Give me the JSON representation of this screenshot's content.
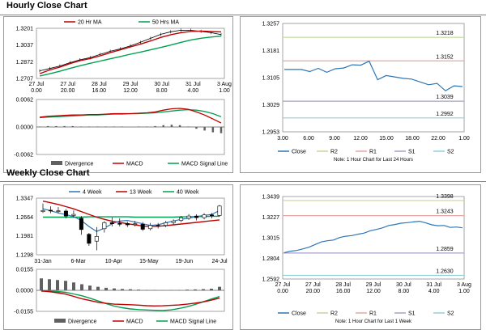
{
  "sections": {
    "hourly_title": "Hourly Close Chart",
    "weekly_title": "Weekly Close Chart"
  },
  "chart_data": [
    {
      "id": "hourly-price",
      "type": "line",
      "title": "Hourly Close Chart",
      "legend": [
        "20 Hr MA",
        "50 Hrs MA"
      ],
      "legend_colors": [
        "#c00000",
        "#00a050"
      ],
      "x_tick_labels": [
        [
          "27 Jul",
          "0.00"
        ],
        [
          "27 Jul",
          "20.00"
        ],
        [
          "28 Jul",
          "16.00"
        ],
        [
          "29 Jul",
          "12.00"
        ],
        [
          "30 Jul",
          "8.00"
        ],
        [
          "31 Jul",
          "4.00"
        ],
        [
          "3 Aug",
          "1.00"
        ]
      ],
      "y_ticks": [
        1.2707,
        1.2872,
        1.3037,
        1.3201
      ],
      "ylim": [
        1.2707,
        1.3201
      ],
      "series": [
        {
          "name": "Price",
          "color": "#000000",
          "values": [
            1.2782,
            1.2805,
            1.283,
            1.2862,
            1.2891,
            1.2912,
            1.2944,
            1.2975,
            1.2999,
            1.3028,
            1.3063,
            1.3102,
            1.3141,
            1.3167,
            1.3182,
            1.3181,
            1.3171,
            1.3158,
            1.3139
          ]
        },
        {
          "name": "20 Hr MA",
          "color": "#c00000",
          "values": [
            1.2754,
            1.2791,
            1.2819,
            1.2853,
            1.2883,
            1.2903,
            1.293,
            1.2961,
            1.2989,
            1.3018,
            1.3045,
            1.3077,
            1.3111,
            1.3138,
            1.3158,
            1.3171,
            1.3174,
            1.3169,
            1.3166
          ]
        },
        {
          "name": "50 Hrs MA",
          "color": "#00a050",
          "values": [
            1.2731,
            1.2753,
            1.2778,
            1.2806,
            1.2832,
            1.2856,
            1.2878,
            1.2901,
            1.2923,
            1.2946,
            1.2967,
            1.2989,
            1.3012,
            1.3036,
            1.3062,
            1.3086,
            1.3103,
            1.3115,
            1.3124
          ]
        }
      ]
    },
    {
      "id": "hourly-macd",
      "type": "line",
      "legend": [
        "Divergence",
        "MACD",
        "MACD Signal Line"
      ],
      "legend_colors": [
        "#606060",
        "#c00000",
        "#00a050"
      ],
      "y_ticks": [
        -0.0062,
        0.0,
        0.0062
      ],
      "ylim": [
        -0.0062,
        0.0062
      ],
      "series": [
        {
          "name": "MACD",
          "color": "#c00000",
          "values": [
            0.0022,
            0.0024,
            0.0025,
            0.0026,
            0.0027,
            0.0027,
            0.0028,
            0.0028,
            0.0029,
            0.003,
            0.003,
            0.003,
            0.0031,
            0.0032,
            0.0034,
            0.0038,
            0.0041,
            0.0042,
            0.004,
            0.0034,
            0.0027,
            0.0018,
            0.0009
          ]
        },
        {
          "name": "MACD Signal Line",
          "color": "#00a050",
          "values": [
            0.0021,
            0.0022,
            0.0023,
            0.0024,
            0.0025,
            0.0026,
            0.0027,
            0.0027,
            0.0028,
            0.0029,
            0.0029,
            0.003,
            0.003,
            0.0031,
            0.0032,
            0.0034,
            0.0036,
            0.0038,
            0.0039,
            0.0038,
            0.0035,
            0.003,
            0.0023
          ]
        },
        {
          "name": "Divergence",
          "color": "#606060",
          "values": [
            0.0001,
            0.0002,
            0.0002,
            0.0002,
            0.0002,
            0.0001,
            0.0001,
            0.0001,
            0.0001,
            0.0001,
            0.0001,
            0.0,
            0.0001,
            0.0001,
            0.0002,
            0.0004,
            0.0005,
            0.0004,
            0.0001,
            -0.0004,
            -0.0008,
            -0.0012,
            -0.0014
          ]
        }
      ]
    },
    {
      "id": "hourly-close",
      "type": "line",
      "legend": [
        "Close",
        "R2",
        "R1",
        "S1",
        "S2"
      ],
      "legend_colors": [
        "#2e75b6",
        "#c4d79b",
        "#e6a6a6",
        "#a9a0c8",
        "#92cddc"
      ],
      "note": "Note: 1 Hour Chart for Last 24 Hours",
      "x_tick_labels": [
        "3.00",
        "6.00",
        "9.00",
        "12.00",
        "15.00",
        "18.00",
        "22.00",
        "1.00"
      ],
      "y_ticks": [
        1.2953,
        1.3029,
        1.3105,
        1.3181,
        1.3257
      ],
      "ylim": [
        1.2953,
        1.3257
      ],
      "levels": {
        "R2": 1.3218,
        "R1": 1.3152,
        "S1": 1.3039,
        "S2": 1.2992
      },
      "level_labels": {
        "R2": "1.3218",
        "R1": "1.3152",
        "S1": "1.3039",
        "S2": "1.2992"
      },
      "series": [
        {
          "name": "Close",
          "color": "#2e75b6",
          "values": [
            1.3128,
            1.3128,
            1.3128,
            1.3122,
            1.3131,
            1.312,
            1.313,
            1.3132,
            1.3141,
            1.314,
            1.3151,
            1.3099,
            1.3111,
            1.3107,
            1.3103,
            1.3101,
            1.3093,
            1.3085,
            1.3089,
            1.3068,
            1.3082,
            1.308
          ]
        }
      ]
    },
    {
      "id": "weekly-price",
      "type": "line",
      "title": "Weekly Close Chart",
      "legend": [
        "4 Week",
        "13 Week",
        "40 Week"
      ],
      "legend_colors": [
        "#2e75b6",
        "#c00000",
        "#00a050"
      ],
      "x_tick_labels": [
        "31-Jan",
        "6-Mar",
        "10-Apr",
        "15-May",
        "19-Jun",
        "24-Jul"
      ],
      "y_ticks": [
        1.1298,
        1.1981,
        1.2664,
        1.3347
      ],
      "ylim": [
        1.1298,
        1.3347
      ],
      "series": [
        {
          "name": "4 Week",
          "color": "#2e75b6",
          "values": [
            1.296,
            1.289,
            1.281,
            1.275,
            1.268,
            1.254,
            1.232,
            1.214,
            1.226,
            1.242,
            1.252,
            1.254,
            1.248,
            1.242,
            1.236,
            1.238,
            1.246,
            1.252,
            1.258,
            1.262,
            1.268,
            1.272,
            1.276,
            1.29
          ]
        },
        {
          "name": "13 Week",
          "color": "#c00000",
          "values": [
            1.324,
            1.318,
            1.312,
            1.304,
            1.296,
            1.286,
            1.276,
            1.266,
            1.258,
            1.251,
            1.247,
            1.242,
            1.238,
            1.234,
            1.232,
            1.233,
            1.235,
            1.238,
            1.241,
            1.244,
            1.247,
            1.25,
            1.253,
            1.256
          ]
        },
        {
          "name": "40 Week",
          "color": "#00a050",
          "values": [
            1.266,
            1.266,
            1.266,
            1.266,
            1.266,
            1.266,
            1.267,
            1.267,
            1.267,
            1.267,
            1.267,
            1.267,
            1.266,
            1.266,
            1.266,
            1.266,
            1.266,
            1.266,
            1.267,
            1.267,
            1.268,
            1.268,
            1.269,
            1.269
          ]
        }
      ],
      "candles": [
        {
          "o": 1.286,
          "c": 1.29,
          "h": 1.315,
          "l": 1.281
        },
        {
          "o": 1.291,
          "c": 1.288,
          "h": 1.305,
          "l": 1.28
        },
        {
          "o": 1.287,
          "c": 1.289,
          "h": 1.302,
          "l": 1.28
        },
        {
          "o": 1.288,
          "c": 1.27,
          "h": 1.295,
          "l": 1.262
        },
        {
          "o": 1.272,
          "c": 1.276,
          "h": 1.29,
          "l": 1.264
        },
        {
          "o": 1.262,
          "c": 1.221,
          "h": 1.27,
          "l": 1.202
        },
        {
          "o": 1.204,
          "c": 1.171,
          "h": 1.209,
          "l": 1.162
        },
        {
          "o": 1.179,
          "c": 1.196,
          "h": 1.23,
          "l": 1.146
        },
        {
          "o": 1.224,
          "c": 1.246,
          "h": 1.252,
          "l": 1.21
        },
        {
          "o": 1.246,
          "c": 1.242,
          "h": 1.265,
          "l": 1.232
        },
        {
          "o": 1.243,
          "c": 1.241,
          "h": 1.262,
          "l": 1.232
        },
        {
          "o": 1.243,
          "c": 1.238,
          "h": 1.25,
          "l": 1.23
        },
        {
          "o": 1.24,
          "c": 1.242,
          "h": 1.252,
          "l": 1.232
        },
        {
          "o": 1.24,
          "c": 1.222,
          "h": 1.248,
          "l": 1.216
        },
        {
          "o": 1.224,
          "c": 1.236,
          "h": 1.245,
          "l": 1.218
        },
        {
          "o": 1.236,
          "c": 1.234,
          "h": 1.245,
          "l": 1.225
        },
        {
          "o": 1.236,
          "c": 1.246,
          "h": 1.252,
          "l": 1.23
        },
        {
          "o": 1.246,
          "c": 1.252,
          "h": 1.258,
          "l": 1.24
        },
        {
          "o": 1.254,
          "c": 1.264,
          "h": 1.27,
          "l": 1.248
        },
        {
          "o": 1.262,
          "c": 1.27,
          "h": 1.277,
          "l": 1.256
        },
        {
          "o": 1.27,
          "c": 1.264,
          "h": 1.276,
          "l": 1.254
        },
        {
          "o": 1.264,
          "c": 1.274,
          "h": 1.28,
          "l": 1.258
        },
        {
          "o": 1.274,
          "c": 1.272,
          "h": 1.281,
          "l": 1.262
        },
        {
          "o": 1.272,
          "c": 1.306,
          "h": 1.31,
          "l": 1.268
        }
      ]
    },
    {
      "id": "weekly-macd",
      "type": "line",
      "legend": [
        "Divergence",
        "MACD",
        "MACD Signal Line"
      ],
      "legend_colors": [
        "#606060",
        "#c00000",
        "#00a050"
      ],
      "y_ticks": [
        -0.0155,
        0.0,
        0.0155
      ],
      "ylim": [
        -0.0155,
        0.0155
      ],
      "series": [
        {
          "name": "MACD",
          "color": "#c00000",
          "values": [
            -0.0005,
            -0.001,
            -0.0018,
            -0.0028,
            -0.0045,
            -0.0062,
            -0.0075,
            -0.0088,
            -0.0096,
            -0.0102,
            -0.0104,
            -0.0106,
            -0.0109,
            -0.0113,
            -0.0115,
            -0.0114,
            -0.0111,
            -0.0108,
            -0.0102,
            -0.0094,
            -0.0085,
            -0.0072,
            -0.0057
          ]
        },
        {
          "name": "MACD Signal Line",
          "color": "#00a050",
          "values": [
            -0.0006,
            -0.0005,
            -0.0009,
            -0.0015,
            -0.0027,
            -0.004,
            -0.0058,
            -0.0078,
            -0.0098,
            -0.0116,
            -0.0128,
            -0.0137,
            -0.0142,
            -0.0145,
            -0.0147,
            -0.0149,
            -0.0144,
            -0.0134,
            -0.0121,
            -0.0104,
            -0.0084,
            -0.0064,
            -0.0046
          ]
        },
        {
          "name": "Divergence",
          "color": "#606060",
          "values": [
            0.0088,
            0.0082,
            0.0076,
            0.007,
            0.0058,
            0.0045,
            0.0035,
            0.0026,
            0.0019,
            0.0014,
            0.001,
            0.0008,
            0.0005,
            0.0003,
            0.0002,
            0.0001,
            0.0002,
            0.0003,
            0.0005,
            0.0007,
            0.0009,
            0.0012,
            0.0026
          ]
        }
      ]
    },
    {
      "id": "weekly-close",
      "type": "line",
      "legend": [
        "Close",
        "R2",
        "R1",
        "S1",
        "S2"
      ],
      "legend_colors": [
        "#2e75b6",
        "#c4d79b",
        "#e6a6a6",
        "#a9a0c8",
        "#92cddc"
      ],
      "note": "Note: 1 Hour Chart for Last 1 Week",
      "x_tick_labels": [
        [
          "27 Jul",
          "0.00"
        ],
        [
          "27 Jul",
          "20.00"
        ],
        [
          "28 Jul",
          "16.00"
        ],
        [
          "29 Jul",
          "12.00"
        ],
        [
          "30 Jul",
          "8.00"
        ],
        [
          "31 Jul",
          "4.00"
        ],
        [
          "3 Aug",
          "1.00"
        ]
      ],
      "y_ticks": [
        1.2592,
        1.2804,
        1.3015,
        1.3227,
        1.3439
      ],
      "ylim": [
        1.2592,
        1.3439
      ],
      "levels": {
        "R2": 1.3398,
        "R1": 1.3243,
        "S1": 1.2859,
        "S2": 1.263
      },
      "level_labels": {
        "R2": "1.3398",
        "R1": "1.3243",
        "S1": "1.2859",
        "S2": "1.2630"
      },
      "series": [
        {
          "name": "Close",
          "color": "#2e75b6",
          "values": [
            1.2862,
            1.2878,
            1.2885,
            1.2901,
            1.2918,
            1.2946,
            1.2972,
            1.2985,
            1.2992,
            1.3018,
            1.3031,
            1.3038,
            1.3052,
            1.3064,
            1.3088,
            1.3101,
            1.3118,
            1.3142,
            1.3152,
            1.3165,
            1.3171,
            1.3178,
            1.3185,
            1.3168,
            1.3148,
            1.3139,
            1.3142,
            1.3122,
            1.3126,
            1.3118
          ]
        }
      ]
    }
  ]
}
